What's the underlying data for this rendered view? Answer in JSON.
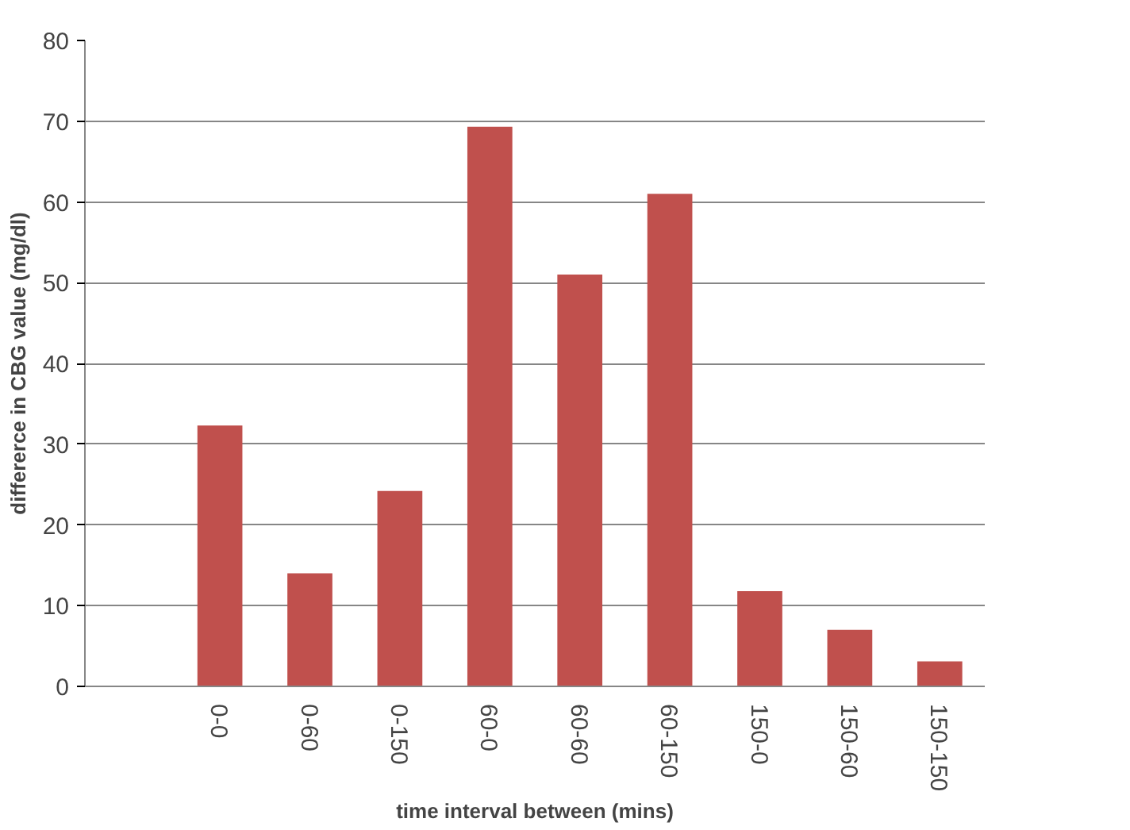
{
  "chart_data": {
    "type": "bar",
    "xlabel": "time interval between (mins)",
    "ylabel": "differerce in CBG value (mg/dl)",
    "categories": [
      null,
      "0-0",
      "0-60",
      "0-150",
      "60-0",
      "60-60",
      "60-150",
      "150-0",
      "150-60",
      "150-150"
    ],
    "series": [
      {
        "color": "#c0504d",
        "values": [
          null,
          32.3,
          14,
          24.2,
          69.3,
          51,
          61,
          11.8,
          7,
          3.1
        ]
      }
    ],
    "ylim": [
      0,
      80
    ],
    "yticks": [
      0,
      10,
      20,
      30,
      40,
      50,
      60,
      70,
      80
    ],
    "grid": "y"
  }
}
